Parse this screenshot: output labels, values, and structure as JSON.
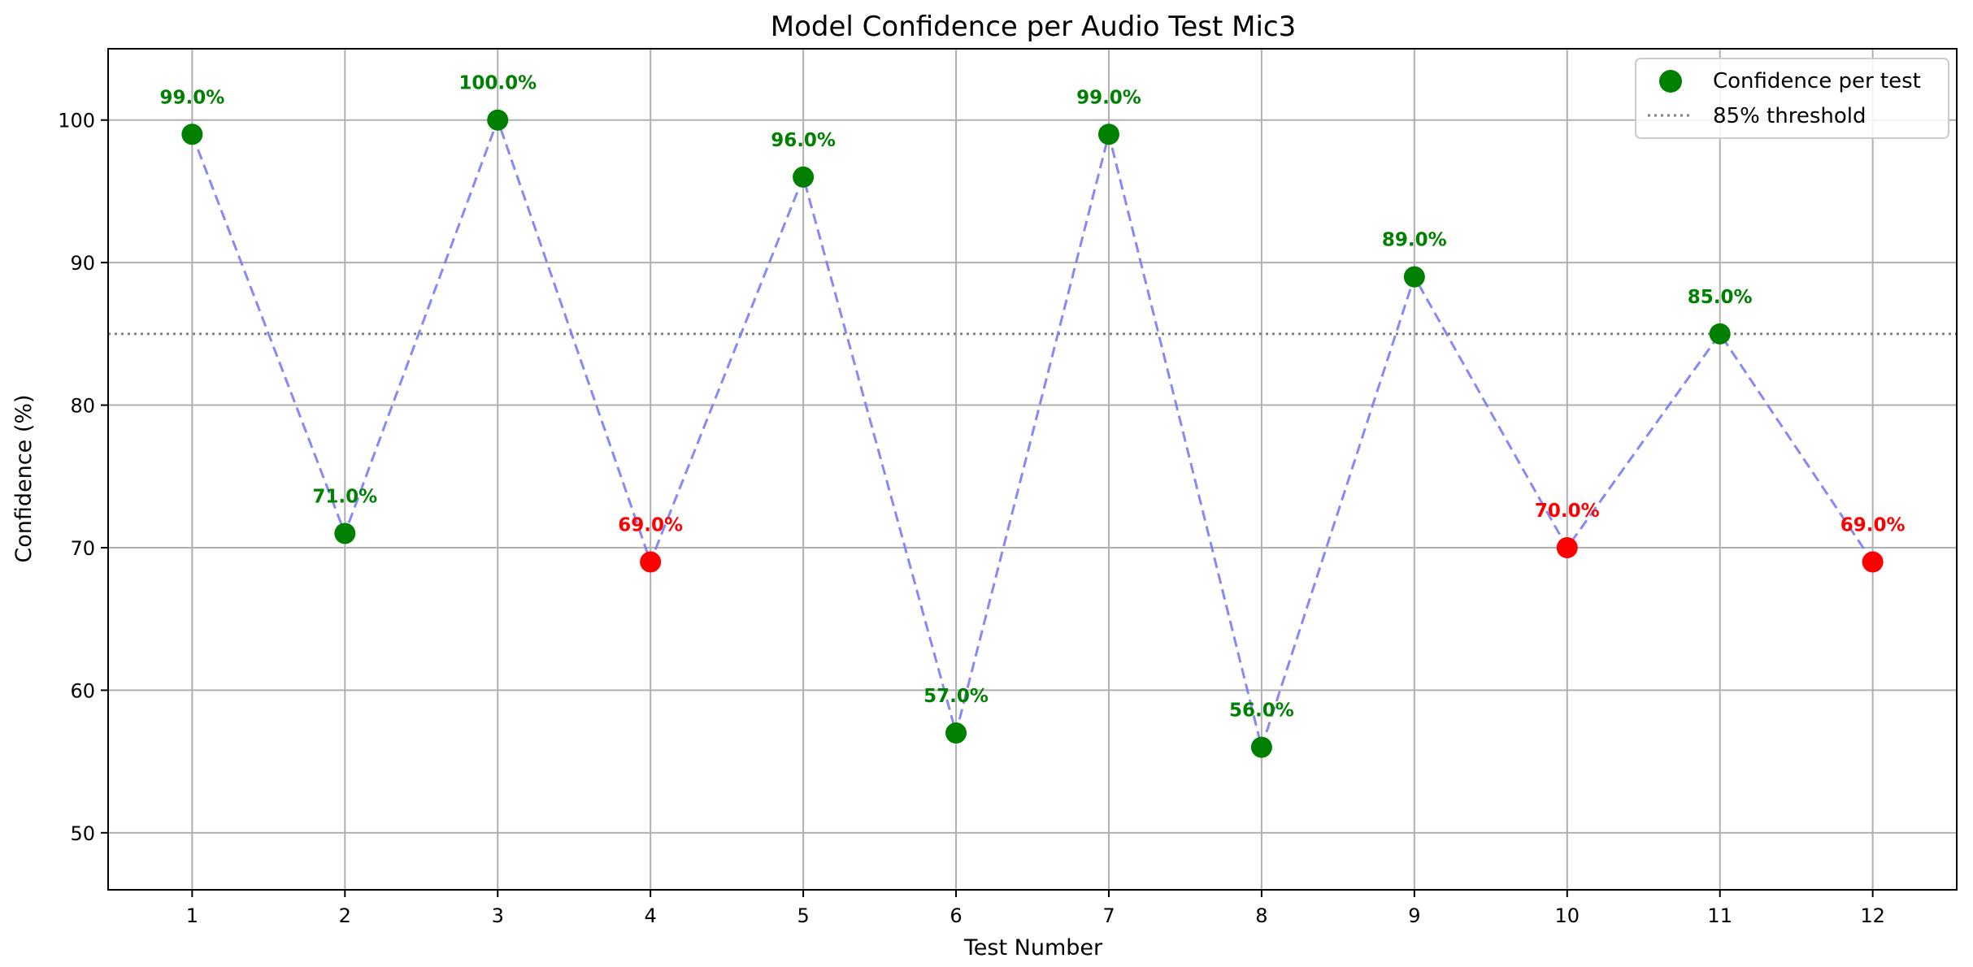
{
  "chart_data": {
    "type": "scatter",
    "title": "Model Confidence per Audio Test Mic3",
    "xlabel": "Test Number",
    "ylabel": "Confidence (%)",
    "x": [
      1,
      2,
      3,
      4,
      5,
      6,
      7,
      8,
      9,
      10,
      11,
      12
    ],
    "values": [
      99,
      71,
      100,
      69,
      96,
      57,
      99,
      56,
      89,
      70,
      85,
      69
    ],
    "data_labels": [
      "99.0%",
      "71.0%",
      "100.0%",
      "69.0%",
      "96.0%",
      "57.0%",
      "99.0%",
      "56.0%",
      "89.0%",
      "70.0%",
      "85.0%",
      "69.0%"
    ],
    "point_colors": [
      "#008000",
      "#008000",
      "#008000",
      "#ff0000",
      "#008000",
      "#008000",
      "#008000",
      "#008000",
      "#008000",
      "#ff0000",
      "#008000",
      "#ff0000"
    ],
    "label_colors": [
      "#008000",
      "#008000",
      "#008000",
      "#ff0000",
      "#008000",
      "#008000",
      "#008000",
      "#008000",
      "#008000",
      "#ff0000",
      "#008000",
      "#ff0000"
    ],
    "threshold": 85,
    "xlim": [
      0.45,
      12.55
    ],
    "ylim": [
      46,
      105
    ],
    "xticks": [
      1,
      2,
      3,
      4,
      5,
      6,
      7,
      8,
      9,
      10,
      11,
      12
    ],
    "yticks": [
      50,
      60,
      70,
      80,
      90,
      100
    ],
    "grid": true,
    "connector_color": "#7b7bf5",
    "threshold_color": "#808080",
    "legend": {
      "position": "top-right",
      "entries": [
        "Confidence per test",
        "85% threshold"
      ]
    }
  }
}
